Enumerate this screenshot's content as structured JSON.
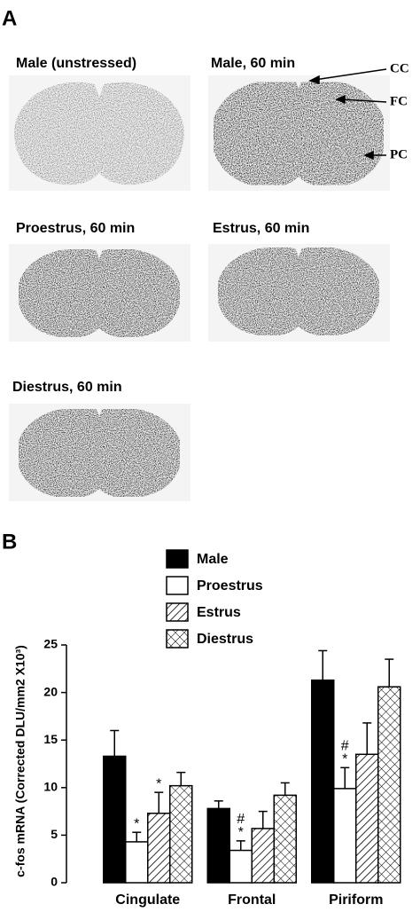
{
  "panel_a": {
    "label": "A",
    "images": [
      "Male (unstressed)",
      "Male, 60 min",
      "Proestrus, 60 min",
      "Estrus, 60 min",
      "Diestrus, 60 min"
    ],
    "annotations": [
      "CC",
      "FC",
      "PC"
    ]
  },
  "chart_data": {
    "type": "bar",
    "label": "B",
    "ylabel": "c-fos mRNA (Corrected DLU/mm2 X10³)",
    "categories": [
      "Cingulate",
      "Frontal",
      "Piriform"
    ],
    "series": [
      {
        "name": "Male",
        "color": "#000000",
        "pattern": "solid",
        "values": [
          13.3,
          7.8,
          21.3
        ],
        "errors": [
          2.7,
          0.8,
          3.1
        ]
      },
      {
        "name": "Proestrus",
        "color": "#ffffff",
        "pattern": "solid",
        "values": [
          4.3,
          3.4,
          9.9
        ],
        "errors": [
          1.0,
          1.0,
          2.2
        ]
      },
      {
        "name": "Estrus",
        "color": "#000000",
        "pattern": "hatch",
        "values": [
          7.3,
          5.7,
          13.5
        ],
        "errors": [
          2.2,
          1.8,
          3.3
        ]
      },
      {
        "name": "Diestrus",
        "color": "#000000",
        "pattern": "crosshatch",
        "values": [
          10.2,
          9.2,
          20.6
        ],
        "errors": [
          1.4,
          1.3,
          2.9
        ]
      }
    ],
    "annotations": [
      {
        "text": "*",
        "series": "Proestrus",
        "category": "Cingulate"
      },
      {
        "text": "*",
        "series": "Estrus",
        "category": "Cingulate"
      },
      {
        "text": "*",
        "series": "Proestrus",
        "category": "Frontal"
      },
      {
        "text": "#",
        "series": "Proestrus",
        "category": "Frontal"
      },
      {
        "text": "*",
        "series": "Proestrus",
        "category": "Piriform"
      },
      {
        "text": "#",
        "series": "Proestrus",
        "category": "Piriform"
      }
    ],
    "ylim": [
      0,
      25
    ],
    "yticks": [
      0,
      5,
      10,
      15,
      20,
      25
    ]
  }
}
